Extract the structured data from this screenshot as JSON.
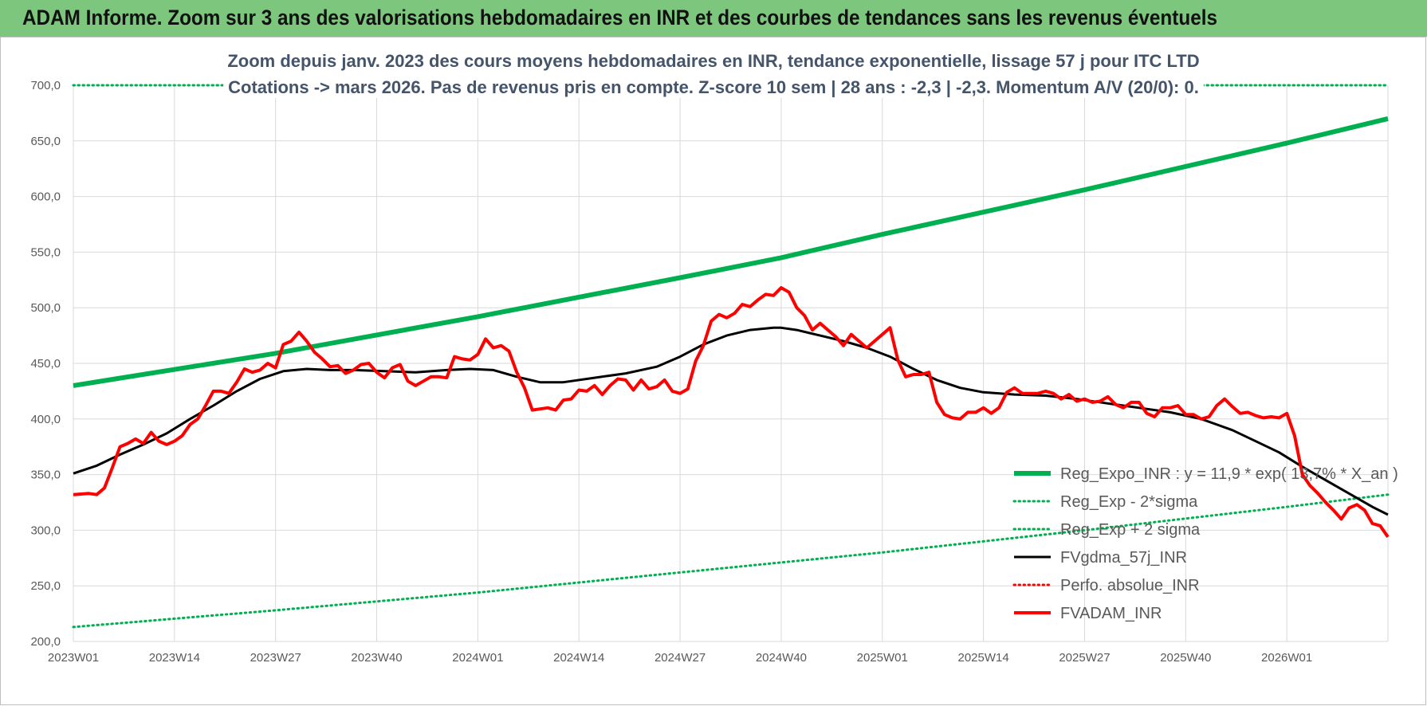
{
  "header": {
    "title": "ADAM Informe. Zoom sur 3 ans des valorisations hebdomadaires en INR et des courbes de tendances sans les revenus éventuels"
  },
  "chart_data": {
    "type": "line",
    "title": "",
    "subtitle_lines": [
      "Zoom depuis janv. 2023 des cours moyens hebdomadaires en INR, tendance exponentielle, lissage 57 j pour ITC LTD",
      "Cotations -> mars 2026. Pas de revenus pris en compte. Z-score 10 sem | 28 ans : -2,3 | -2,3. Momentum A/V (20/0): 0."
    ],
    "xlabel": "",
    "ylabel": "",
    "ylim": [
      200,
      700
    ],
    "y_ticks": [
      "200,0",
      "250,0",
      "300,0",
      "350,0",
      "400,0",
      "450,0",
      "500,0",
      "550,0",
      "600,0",
      "650,0",
      "700,0"
    ],
    "x_range": [
      0,
      169
    ],
    "x_ticks": [
      {
        "label": "2023W01",
        "week": 0
      },
      {
        "label": "2023W14",
        "week": 13
      },
      {
        "label": "2023W27",
        "week": 26
      },
      {
        "label": "2023W40",
        "week": 39
      },
      {
        "label": "2024W01",
        "week": 52
      },
      {
        "label": "2024W14",
        "week": 65
      },
      {
        "label": "2024W27",
        "week": 78
      },
      {
        "label": "2024W40",
        "week": 91
      },
      {
        "label": "2025W01",
        "week": 104
      },
      {
        "label": "2025W14",
        "week": 117
      },
      {
        "label": "2025W27",
        "week": 130
      },
      {
        "label": "2025W40",
        "week": 143
      },
      {
        "label": "2026W01",
        "week": 156
      }
    ],
    "grid": true,
    "legend_position": "bottom-right",
    "series": [
      {
        "name": "Reg_Expo_INR : y = 11,9 * exp( 13,7% *  X_an )",
        "color": "#00b050",
        "style": "solid-thick",
        "points": [
          [
            0,
            430
          ],
          [
            26,
            459
          ],
          [
            52,
            492
          ],
          [
            78,
            527
          ],
          [
            91,
            545
          ],
          [
            104,
            566
          ],
          [
            130,
            606
          ],
          [
            156,
            648
          ],
          [
            169,
            670
          ]
        ]
      },
      {
        "name": "Reg_Exp - 2*sigma",
        "color": "#00b050",
        "style": "dotted",
        "points": [
          [
            0,
            213
          ],
          [
            26,
            228
          ],
          [
            52,
            244
          ],
          [
            78,
            262
          ],
          [
            104,
            280
          ],
          [
            130,
            300
          ],
          [
            156,
            321
          ],
          [
            169,
            332
          ]
        ]
      },
      {
        "name": "Reg_Exp + 2 sigma",
        "color": "#00b050",
        "style": "dotted",
        "points": [
          [
            0,
            700
          ],
          [
            169,
            700
          ]
        ]
      },
      {
        "name": "FVgdma_57j_INR",
        "color": "#000000",
        "style": "solid",
        "points": [
          [
            0,
            351
          ],
          [
            3,
            358
          ],
          [
            6,
            368
          ],
          [
            9,
            377
          ],
          [
            12,
            387
          ],
          [
            15,
            400
          ],
          [
            18,
            412
          ],
          [
            21,
            425
          ],
          [
            24,
            436
          ],
          [
            27,
            443
          ],
          [
            30,
            445
          ],
          [
            33,
            444
          ],
          [
            36,
            444
          ],
          [
            40,
            443
          ],
          [
            44,
            442
          ],
          [
            48,
            444
          ],
          [
            51,
            445
          ],
          [
            54,
            444
          ],
          [
            57,
            438
          ],
          [
            60,
            433
          ],
          [
            63,
            433
          ],
          [
            67,
            437
          ],
          [
            71,
            441
          ],
          [
            75,
            447
          ],
          [
            78,
            456
          ],
          [
            81,
            467
          ],
          [
            84,
            475
          ],
          [
            87,
            480
          ],
          [
            90,
            482
          ],
          [
            91,
            482
          ],
          [
            93,
            480
          ],
          [
            96,
            475
          ],
          [
            99,
            470
          ],
          [
            102,
            464
          ],
          [
            105,
            456
          ],
          [
            108,
            445
          ],
          [
            111,
            435
          ],
          [
            114,
            428
          ],
          [
            117,
            424
          ],
          [
            121,
            422
          ],
          [
            125,
            421
          ],
          [
            129,
            418
          ],
          [
            133,
            414
          ],
          [
            137,
            410
          ],
          [
            141,
            406
          ],
          [
            145,
            400
          ],
          [
            149,
            390
          ],
          [
            152,
            380
          ],
          [
            155,
            370
          ],
          [
            158,
            357
          ],
          [
            161,
            345
          ],
          [
            164,
            333
          ],
          [
            167,
            321
          ],
          [
            169,
            314
          ]
        ]
      },
      {
        "name": "Perfo. absolue_INR",
        "color": "#ff0000",
        "style": "dotted",
        "points": []
      },
      {
        "name": "FVADAM_INR",
        "color": "#ff0000",
        "style": "solid-thick",
        "points": [
          [
            0,
            332
          ],
          [
            2,
            333
          ],
          [
            3,
            332
          ],
          [
            4,
            338
          ],
          [
            5,
            356
          ],
          [
            6,
            375
          ],
          [
            7,
            378
          ],
          [
            8,
            382
          ],
          [
            9,
            378
          ],
          [
            10,
            388
          ],
          [
            11,
            380
          ],
          [
            12,
            377
          ],
          [
            13,
            380
          ],
          [
            14,
            385
          ],
          [
            15,
            395
          ],
          [
            16,
            400
          ],
          [
            17,
            412
          ],
          [
            18,
            425
          ],
          [
            19,
            425
          ],
          [
            20,
            423
          ],
          [
            21,
            433
          ],
          [
            22,
            445
          ],
          [
            23,
            442
          ],
          [
            24,
            444
          ],
          [
            25,
            450
          ],
          [
            26,
            446
          ],
          [
            27,
            467
          ],
          [
            28,
            470
          ],
          [
            29,
            478
          ],
          [
            30,
            470
          ],
          [
            31,
            460
          ],
          [
            32,
            454
          ],
          [
            33,
            447
          ],
          [
            34,
            448
          ],
          [
            35,
            441
          ],
          [
            36,
            444
          ],
          [
            37,
            449
          ],
          [
            38,
            450
          ],
          [
            39,
            442
          ],
          [
            40,
            437
          ],
          [
            41,
            446
          ],
          [
            42,
            449
          ],
          [
            43,
            434
          ],
          [
            44,
            430
          ],
          [
            45,
            434
          ],
          [
            46,
            438
          ],
          [
            47,
            438
          ],
          [
            48,
            437
          ],
          [
            49,
            456
          ],
          [
            50,
            454
          ],
          [
            51,
            453
          ],
          [
            52,
            458
          ],
          [
            53,
            472
          ],
          [
            54,
            464
          ],
          [
            55,
            466
          ],
          [
            56,
            461
          ],
          [
            57,
            442
          ],
          [
            58,
            428
          ],
          [
            59,
            408
          ],
          [
            60,
            409
          ],
          [
            61,
            410
          ],
          [
            62,
            408
          ],
          [
            63,
            417
          ],
          [
            64,
            418
          ],
          [
            65,
            426
          ],
          [
            66,
            425
          ],
          [
            67,
            430
          ],
          [
            68,
            422
          ],
          [
            69,
            430
          ],
          [
            70,
            436
          ],
          [
            71,
            435
          ],
          [
            72,
            426
          ],
          [
            73,
            435
          ],
          [
            74,
            427
          ],
          [
            75,
            429
          ],
          [
            76,
            435
          ],
          [
            77,
            425
          ],
          [
            78,
            423
          ],
          [
            79,
            427
          ],
          [
            80,
            452
          ],
          [
            81,
            466
          ],
          [
            82,
            488
          ],
          [
            83,
            494
          ],
          [
            84,
            491
          ],
          [
            85,
            495
          ],
          [
            86,
            503
          ],
          [
            87,
            501
          ],
          [
            88,
            507
          ],
          [
            89,
            512
          ],
          [
            90,
            511
          ],
          [
            91,
            518
          ],
          [
            92,
            514
          ],
          [
            93,
            500
          ],
          [
            94,
            493
          ],
          [
            95,
            480
          ],
          [
            96,
            486
          ],
          [
            97,
            480
          ],
          [
            98,
            474
          ],
          [
            99,
            466
          ],
          [
            100,
            476
          ],
          [
            101,
            470
          ],
          [
            102,
            464
          ],
          [
            103,
            470
          ],
          [
            104,
            476
          ],
          [
            105,
            482
          ],
          [
            106,
            453
          ],
          [
            107,
            438
          ],
          [
            108,
            440
          ],
          [
            109,
            440
          ],
          [
            110,
            442
          ],
          [
            111,
            415
          ],
          [
            112,
            404
          ],
          [
            113,
            401
          ],
          [
            114,
            400
          ],
          [
            115,
            406
          ],
          [
            116,
            406
          ],
          [
            117,
            410
          ],
          [
            118,
            405
          ],
          [
            119,
            410
          ],
          [
            120,
            424
          ],
          [
            121,
            428
          ],
          [
            122,
            423
          ],
          [
            123,
            423
          ],
          [
            124,
            423
          ],
          [
            125,
            425
          ],
          [
            126,
            423
          ],
          [
            127,
            418
          ],
          [
            128,
            422
          ],
          [
            129,
            416
          ],
          [
            130,
            418
          ],
          [
            131,
            415
          ],
          [
            132,
            416
          ],
          [
            133,
            420
          ],
          [
            134,
            413
          ],
          [
            135,
            410
          ],
          [
            136,
            415
          ],
          [
            137,
            415
          ],
          [
            138,
            405
          ],
          [
            139,
            402
          ],
          [
            140,
            410
          ],
          [
            141,
            410
          ],
          [
            142,
            412
          ],
          [
            143,
            404
          ],
          [
            144,
            404
          ],
          [
            145,
            400
          ],
          [
            146,
            402
          ],
          [
            147,
            412
          ],
          [
            148,
            418
          ],
          [
            149,
            411
          ],
          [
            150,
            405
          ],
          [
            151,
            406
          ],
          [
            152,
            403
          ],
          [
            153,
            401
          ],
          [
            154,
            402
          ],
          [
            155,
            401
          ],
          [
            156,
            405
          ],
          [
            157,
            385
          ],
          [
            158,
            350
          ],
          [
            159,
            340
          ],
          [
            160,
            333
          ],
          [
            161,
            325
          ],
          [
            162,
            318
          ],
          [
            163,
            310
          ],
          [
            164,
            320
          ],
          [
            165,
            323
          ],
          [
            166,
            318
          ],
          [
            167,
            306
          ],
          [
            168,
            304
          ],
          [
            169,
            294
          ]
        ]
      }
    ]
  }
}
